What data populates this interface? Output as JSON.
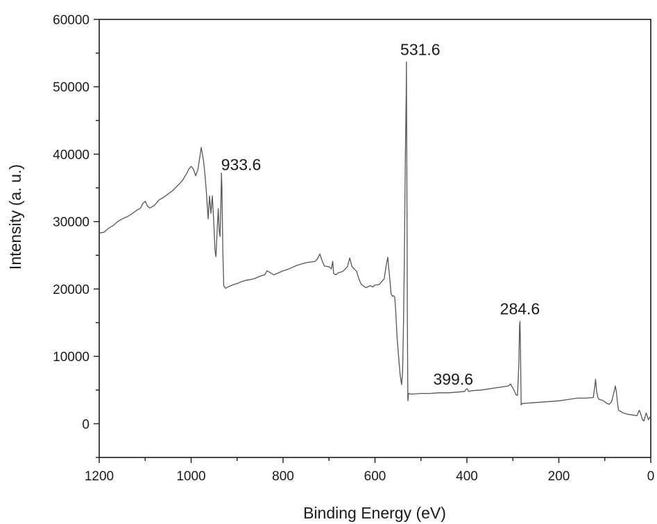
{
  "chart_data": {
    "type": "line",
    "xlabel": "Binding Energy (eV)",
    "ylabel": "Intensity (a. u.)",
    "xlim": [
      1200,
      0
    ],
    "ylim": [
      -5000,
      60000
    ],
    "x_reversed": true,
    "x_ticks": [
      1200,
      1000,
      800,
      600,
      400,
      200,
      0
    ],
    "y_ticks": [
      0,
      10000,
      20000,
      30000,
      40000,
      50000,
      60000
    ],
    "x_tick_labels": [
      "1200",
      "1000",
      "800",
      "600",
      "400",
      "200",
      "0"
    ],
    "y_tick_labels": [
      "0",
      "10000",
      "20000",
      "30000",
      "40000",
      "50000",
      "60000"
    ],
    "grid": false,
    "line_color": "#555555",
    "series": [
      {
        "points": [
          [
            1200,
            28300
          ],
          [
            1190,
            28400
          ],
          [
            1180,
            29000
          ],
          [
            1170,
            29400
          ],
          [
            1160,
            30000
          ],
          [
            1150,
            30400
          ],
          [
            1140,
            30700
          ],
          [
            1130,
            31100
          ],
          [
            1120,
            31600
          ],
          [
            1110,
            32000
          ],
          [
            1105,
            32700
          ],
          [
            1100,
            33000
          ],
          [
            1095,
            32300
          ],
          [
            1090,
            32000
          ],
          [
            1080,
            32400
          ],
          [
            1070,
            33200
          ],
          [
            1060,
            33600
          ],
          [
            1050,
            34100
          ],
          [
            1040,
            34600
          ],
          [
            1030,
            35300
          ],
          [
            1020,
            36000
          ],
          [
            1010,
            37100
          ],
          [
            1005,
            37800
          ],
          [
            1000,
            38200
          ],
          [
            995,
            37800
          ],
          [
            990,
            36800
          ],
          [
            985,
            37800
          ],
          [
            978,
            41000
          ],
          [
            973,
            39000
          ],
          [
            970,
            37000
          ],
          [
            967,
            34500
          ],
          [
            963,
            30400
          ],
          [
            960,
            33800
          ],
          [
            957,
            31200
          ],
          [
            954,
            33800
          ],
          [
            951,
            30200
          ],
          [
            948,
            25700
          ],
          [
            946,
            24800
          ],
          [
            943,
            29300
          ],
          [
            941,
            31900
          ],
          [
            939,
            28700
          ],
          [
            937,
            27800
          ],
          [
            935,
            33800
          ],
          [
            934,
            37200
          ],
          [
            933,
            35000
          ],
          [
            931,
            25500
          ],
          [
            929,
            20500
          ],
          [
            925,
            20100
          ],
          [
            920,
            20300
          ],
          [
            910,
            20600
          ],
          [
            900,
            20800
          ],
          [
            890,
            21100
          ],
          [
            880,
            21300
          ],
          [
            870,
            21400
          ],
          [
            860,
            21600
          ],
          [
            850,
            21900
          ],
          [
            840,
            22100
          ],
          [
            835,
            22700
          ],
          [
            830,
            22500
          ],
          [
            820,
            22100
          ],
          [
            810,
            22400
          ],
          [
            800,
            22700
          ],
          [
            790,
            22900
          ],
          [
            780,
            23200
          ],
          [
            770,
            23500
          ],
          [
            760,
            23700
          ],
          [
            750,
            23900
          ],
          [
            740,
            24000
          ],
          [
            730,
            24100
          ],
          [
            725,
            24500
          ],
          [
            720,
            25200
          ],
          [
            715,
            24200
          ],
          [
            710,
            23400
          ],
          [
            700,
            23300
          ],
          [
            695,
            23000
          ],
          [
            692,
            24100
          ],
          [
            690,
            22300
          ],
          [
            685,
            22100
          ],
          [
            680,
            22400
          ],
          [
            670,
            22600
          ],
          [
            660,
            23300
          ],
          [
            655,
            24600
          ],
          [
            650,
            23300
          ],
          [
            640,
            22600
          ],
          [
            635,
            21500
          ],
          [
            630,
            20700
          ],
          [
            620,
            20200
          ],
          [
            610,
            20500
          ],
          [
            605,
            20300
          ],
          [
            600,
            20600
          ],
          [
            595,
            20600
          ],
          [
            590,
            20700
          ],
          [
            585,
            21100
          ],
          [
            580,
            21500
          ],
          [
            575,
            23800
          ],
          [
            572,
            24700
          ],
          [
            570,
            23000
          ],
          [
            567,
            20900
          ],
          [
            565,
            19300
          ],
          [
            562,
            18900
          ],
          [
            560,
            19000
          ],
          [
            557,
            18800
          ],
          [
            555,
            16900
          ],
          [
            552,
            12900
          ],
          [
            548,
            9400
          ],
          [
            545,
            7100
          ],
          [
            542,
            5800
          ],
          [
            540,
            7800
          ],
          [
            538,
            14800
          ],
          [
            536,
            24900
          ],
          [
            534,
            38900
          ],
          [
            532,
            48900
          ],
          [
            531.6,
            53700
          ],
          [
            530.5,
            35600
          ],
          [
            529.5,
            14900
          ],
          [
            528.5,
            3400
          ],
          [
            527,
            4500
          ],
          [
            520,
            4400
          ],
          [
            500,
            4500
          ],
          [
            480,
            4500
          ],
          [
            460,
            4600
          ],
          [
            440,
            4600
          ],
          [
            420,
            4700
          ],
          [
            405,
            4800
          ],
          [
            402,
            5100
          ],
          [
            399.6,
            5200
          ],
          [
            396,
            4800
          ],
          [
            390,
            4900
          ],
          [
            370,
            5000
          ],
          [
            350,
            5200
          ],
          [
            330,
            5400
          ],
          [
            310,
            5600
          ],
          [
            305,
            5900
          ],
          [
            300,
            5300
          ],
          [
            293,
            4300
          ],
          [
            290,
            4200
          ],
          [
            287,
            8900
          ],
          [
            285.5,
            14600
          ],
          [
            284.6,
            15200
          ],
          [
            283.5,
            11400
          ],
          [
            282,
            2800
          ],
          [
            280,
            3000
          ],
          [
            260,
            3100
          ],
          [
            240,
            3200
          ],
          [
            220,
            3300
          ],
          [
            200,
            3400
          ],
          [
            180,
            3600
          ],
          [
            160,
            3800
          ],
          [
            140,
            3800
          ],
          [
            125,
            3900
          ],
          [
            122,
            5500
          ],
          [
            120,
            6600
          ],
          [
            118,
            4900
          ],
          [
            115,
            3900
          ],
          [
            112,
            3600
          ],
          [
            105,
            3500
          ],
          [
            95,
            3000
          ],
          [
            90,
            2900
          ],
          [
            85,
            3300
          ],
          [
            80,
            4700
          ],
          [
            77,
            5600
          ],
          [
            75,
            4800
          ],
          [
            72,
            2900
          ],
          [
            70,
            2000
          ],
          [
            60,
            1600
          ],
          [
            50,
            1400
          ],
          [
            40,
            1300
          ],
          [
            30,
            1200
          ],
          [
            25,
            2000
          ],
          [
            22,
            1500
          ],
          [
            18,
            600
          ],
          [
            15,
            400
          ],
          [
            10,
            1600
          ],
          [
            8,
            1200
          ],
          [
            5,
            600
          ],
          [
            2,
            1000
          ],
          [
            0,
            1100
          ]
        ]
      }
    ],
    "annotations": [
      {
        "text": "933.6",
        "x": 933.6,
        "y": 37200
      },
      {
        "text": "531.6",
        "x": 531.6,
        "y": 53700
      },
      {
        "text": "399.6",
        "x": 399.6,
        "y": 5200
      },
      {
        "text": "284.6",
        "x": 284.6,
        "y": 15200
      }
    ]
  }
}
